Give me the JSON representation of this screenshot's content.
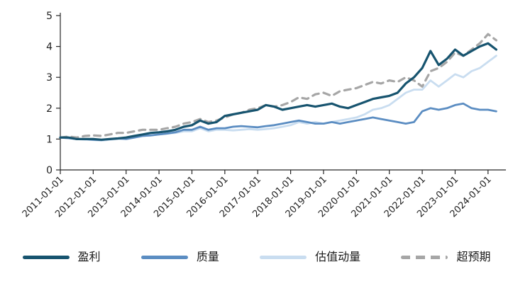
{
  "chart_data": {
    "type": "line",
    "title": "",
    "xlabel": "",
    "ylabel": "",
    "grid": false,
    "legend_position": "bottom",
    "ylim": [
      0,
      5
    ],
    "y_ticks": [
      0,
      1,
      2,
      3,
      4,
      5
    ],
    "xlim_years": [
      2011,
      2024.5
    ],
    "x_tick_labels": [
      "2011-01-01",
      "2012-01-01",
      "2013-01-01",
      "2014-01-01",
      "2015-01-01",
      "2016-01-01",
      "2017-01-01",
      "2018-01-01",
      "2019-01-01",
      "2020-01-01",
      "2021-01-01",
      "2022-01-01",
      "2023-01-01",
      "2024-01-01"
    ],
    "x": [
      2011.0,
      2011.25,
      2011.5,
      2011.75,
      2012.0,
      2012.25,
      2012.5,
      2012.75,
      2013.0,
      2013.25,
      2013.5,
      2013.75,
      2014.0,
      2014.25,
      2014.5,
      2014.75,
      2015.0,
      2015.25,
      2015.5,
      2015.75,
      2016.0,
      2016.25,
      2016.5,
      2016.75,
      2017.0,
      2017.25,
      2017.5,
      2017.75,
      2018.0,
      2018.25,
      2018.5,
      2018.75,
      2019.0,
      2019.25,
      2019.5,
      2019.75,
      2020.0,
      2020.25,
      2020.5,
      2020.75,
      2021.0,
      2021.25,
      2021.5,
      2021.75,
      2022.0,
      2022.25,
      2022.5,
      2022.75,
      2023.0,
      2023.25,
      2023.5,
      2023.75,
      2024.0,
      2024.25
    ],
    "series": [
      {
        "id": "profit",
        "name": "盈利",
        "color": "#17546F",
        "style": "solid",
        "values": [
          1.05,
          1.05,
          1.0,
          1.0,
          1.0,
          0.98,
          1.0,
          1.02,
          1.05,
          1.1,
          1.15,
          1.2,
          1.22,
          1.25,
          1.3,
          1.4,
          1.45,
          1.6,
          1.5,
          1.55,
          1.75,
          1.8,
          1.85,
          1.9,
          1.95,
          2.1,
          2.05,
          1.95,
          2.0,
          2.05,
          2.1,
          2.05,
          2.1,
          2.15,
          2.05,
          2.0,
          2.1,
          2.2,
          2.3,
          2.35,
          2.4,
          2.5,
          2.8,
          3.0,
          3.3,
          3.85,
          3.4,
          3.6,
          3.9,
          3.7,
          3.85,
          4.0,
          4.1,
          3.9
        ]
      },
      {
        "id": "quality",
        "name": "质量",
        "color": "#5B8DC2",
        "style": "solid",
        "values": [
          1.05,
          1.03,
          1.0,
          1.0,
          0.98,
          0.97,
          1.0,
          1.02,
          1.0,
          1.05,
          1.1,
          1.12,
          1.15,
          1.18,
          1.22,
          1.3,
          1.3,
          1.4,
          1.3,
          1.35,
          1.35,
          1.4,
          1.42,
          1.4,
          1.38,
          1.42,
          1.45,
          1.5,
          1.55,
          1.6,
          1.55,
          1.5,
          1.5,
          1.55,
          1.5,
          1.55,
          1.6,
          1.65,
          1.7,
          1.65,
          1.6,
          1.55,
          1.5,
          1.55,
          1.9,
          2.0,
          1.95,
          2.0,
          2.1,
          2.15,
          2.0,
          1.95,
          1.95,
          1.9
        ]
      },
      {
        "id": "valuation-momentum",
        "name": "估值动量",
        "color": "#C9DDF0",
        "style": "solid",
        "values": [
          1.05,
          1.03,
          1.0,
          0.98,
          0.97,
          0.95,
          0.98,
          1.0,
          1.02,
          1.05,
          1.1,
          1.12,
          1.15,
          1.18,
          1.2,
          1.25,
          1.25,
          1.35,
          1.25,
          1.3,
          1.3,
          1.28,
          1.3,
          1.32,
          1.3,
          1.32,
          1.35,
          1.4,
          1.45,
          1.55,
          1.5,
          1.55,
          1.5,
          1.55,
          1.6,
          1.65,
          1.7,
          1.8,
          1.95,
          2.0,
          2.1,
          2.3,
          2.5,
          2.6,
          2.6,
          2.9,
          2.7,
          2.9,
          3.1,
          3.0,
          3.2,
          3.3,
          3.5,
          3.7
        ]
      },
      {
        "id": "beat-expectations",
        "name": "超预期",
        "color": "#A6A6A6",
        "style": "dashed",
        "values": [
          1.05,
          1.08,
          1.05,
          1.1,
          1.12,
          1.1,
          1.15,
          1.2,
          1.2,
          1.25,
          1.3,
          1.3,
          1.3,
          1.35,
          1.4,
          1.5,
          1.55,
          1.65,
          1.55,
          1.6,
          1.7,
          1.8,
          1.85,
          1.95,
          2.0,
          2.1,
          2.05,
          2.1,
          2.2,
          2.35,
          2.3,
          2.45,
          2.5,
          2.4,
          2.55,
          2.6,
          2.65,
          2.75,
          2.85,
          2.8,
          2.9,
          2.85,
          3.0,
          2.9,
          2.7,
          3.2,
          3.3,
          3.5,
          3.8,
          3.7,
          3.9,
          4.1,
          4.4,
          4.2
        ]
      }
    ]
  }
}
